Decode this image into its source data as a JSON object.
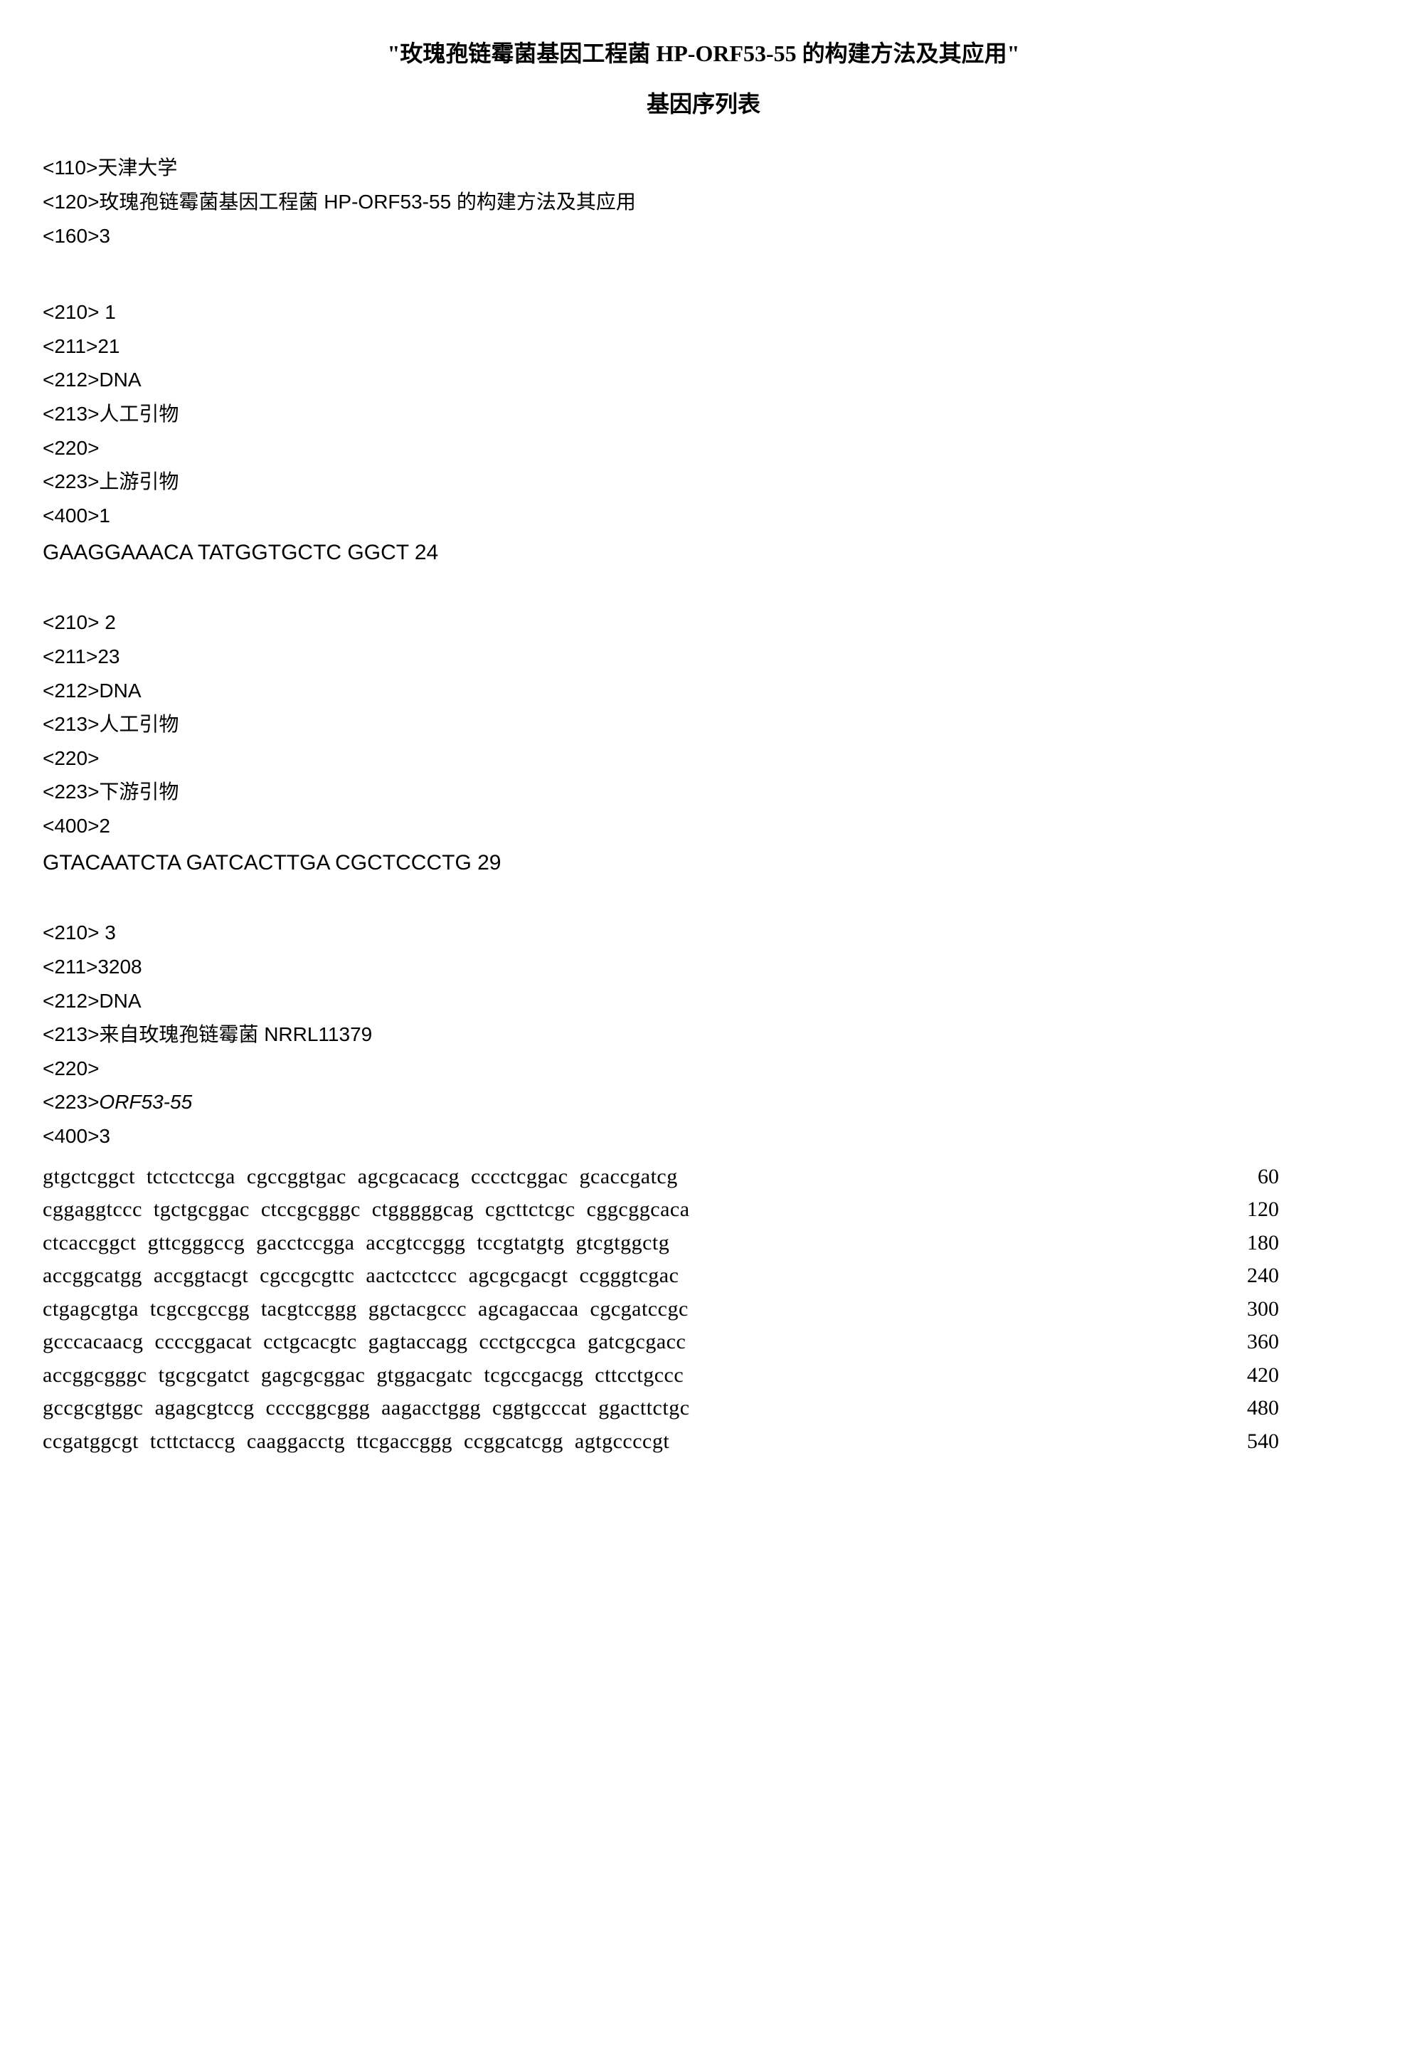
{
  "title": "\"玫瑰孢链霉菌基因工程菌 HP-ORF53-55 的构建方法及其应用\"",
  "subtitle": "基因序列表",
  "header": {
    "tag110": "<110>天津大学",
    "tag120": "<120>玫瑰孢链霉菌基因工程菌 HP-ORF53-55 的构建方法及其应用",
    "tag160": "<160>3"
  },
  "seq1": {
    "tag210": "<210> 1",
    "tag211": "<211>21",
    "tag212": "<212>DNA",
    "tag213": "<213>人工引物",
    "tag220": "<220>",
    "tag223": "<223>上游引物",
    "tag400": "<400>1",
    "sequence": "GAAGGAAACA TATGGTGCTC GGCT 24"
  },
  "seq2": {
    "tag210": "<210> 2",
    "tag211": "<211>23",
    "tag212": "<212>DNA",
    "tag213": "<213>人工引物",
    "tag220": "<220>",
    "tag223": "<223>下游引物",
    "tag400": "<400>2",
    "sequence": "GTACAATCTA GATCACTTGA CGCTCCCTG 29"
  },
  "seq3": {
    "tag210": "<210> 3",
    "tag211": "<211>3208",
    "tag212": "<212>DNA",
    "tag213": "<213>来自玫瑰孢链霉菌 NRRL11379",
    "tag220": "<220>",
    "tag223_prefix": "<223>",
    "tag223_orf": "ORF53-55",
    "tag400": "<400>3",
    "rows": [
      {
        "seq": "gtgctcggct tctcctccga cgccggtgac agcgcacacg cccctcggac gcaccgatcg",
        "num": "60"
      },
      {
        "seq": "cggaggtccc tgctgcggac ctccgcgggc ctgggggcag cgcttctcgc cggcggcaca",
        "num": "120"
      },
      {
        "seq": "ctcaccggct gttcgggccg gacctccgga accgtccggg tccgtatgtg gtcgtggctg",
        "num": "180"
      },
      {
        "seq": "accggcatgg accggtacgt cgccgcgttc aactcctccc agcgcgacgt ccgggtcgac",
        "num": "240"
      },
      {
        "seq": "ctgagcgtga tcgccgccgg tacgtccggg ggctacgccc agcagaccaa cgcgatccgc",
        "num": "300"
      },
      {
        "seq": "gcccacaacg ccccggacat cctgcacgtc gagtaccagg ccctgccgca gatcgcgacc",
        "num": "360"
      },
      {
        "seq": "accggcgggc tgcgcgatct gagcgcggac gtggacgatc tcgccgacgg cttcctgccc",
        "num": "420"
      },
      {
        "seq": "gccgcgtggc agagcgtccg ccccggcggg aagacctggg cggtgcccat ggacttctgc",
        "num": "480"
      },
      {
        "seq": "ccgatggcgt tcttctaccg caaggacctg ttcgaccggg ccggcatcgg agtgccccgt",
        "num": "540"
      }
    ]
  }
}
